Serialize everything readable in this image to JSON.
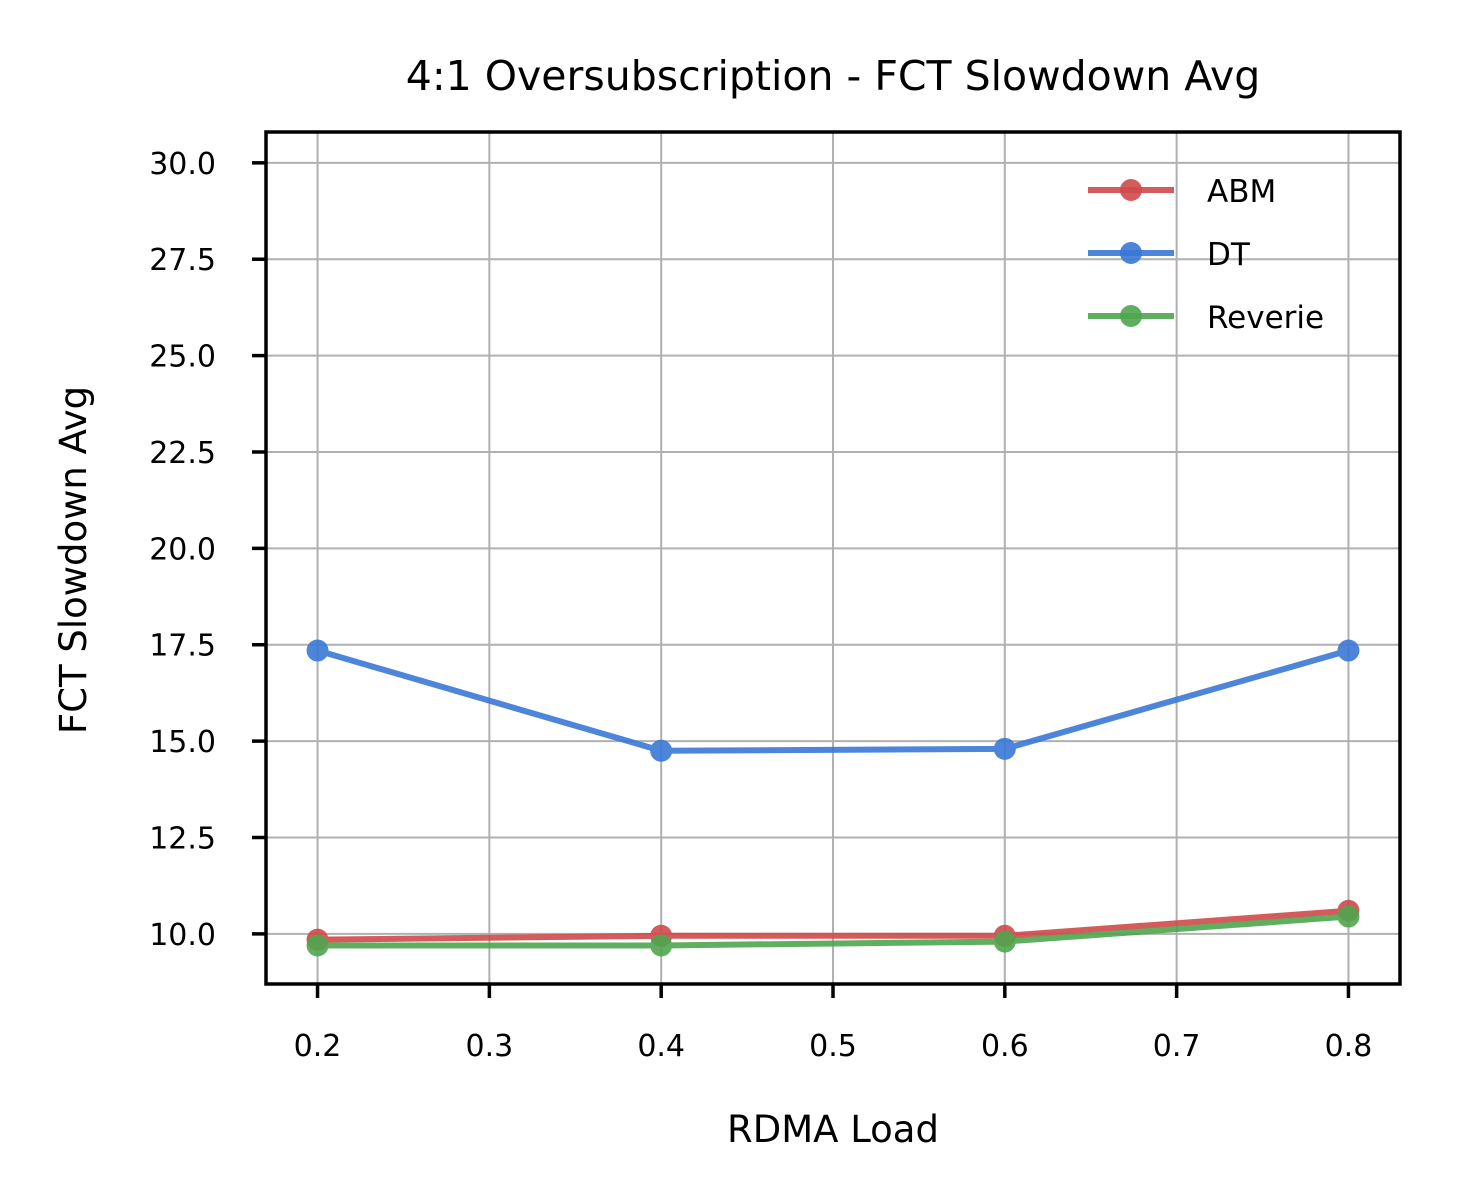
{
  "chart_data": {
    "type": "line",
    "title": "4:1 Oversubscription - FCT Slowdown Avg",
    "xlabel": "RDMA Load",
    "ylabel": "FCT Slowdown Avg",
    "x": [
      0.2,
      0.4,
      0.6,
      0.8
    ],
    "xlim": [
      0.17,
      0.83
    ],
    "ylim": [
      8.7,
      30.8
    ],
    "xticks": [
      0.2,
      0.3,
      0.4,
      0.5,
      0.6,
      0.7,
      0.8
    ],
    "xtick_labels": [
      "0.2",
      "0.3",
      "0.4",
      "0.5",
      "0.6",
      "0.7",
      "0.8"
    ],
    "yticks": [
      10.0,
      12.5,
      15.0,
      17.5,
      20.0,
      22.5,
      25.0,
      27.5,
      30.0
    ],
    "ytick_labels": [
      "10.0",
      "12.5",
      "15.0",
      "17.5",
      "20.0",
      "22.5",
      "25.0",
      "27.5",
      "30.0"
    ],
    "grid": true,
    "legend_position": "top-right",
    "series": [
      {
        "name": "ABM",
        "color": "#d04a4a",
        "values": [
          9.85,
          9.95,
          9.95,
          10.6
        ]
      },
      {
        "name": "DT",
        "color": "#3a78d6",
        "values": [
          17.35,
          14.75,
          14.8,
          17.35
        ]
      },
      {
        "name": "Reverie",
        "color": "#4fa64f",
        "values": [
          9.7,
          9.7,
          9.8,
          10.45
        ]
      }
    ]
  }
}
